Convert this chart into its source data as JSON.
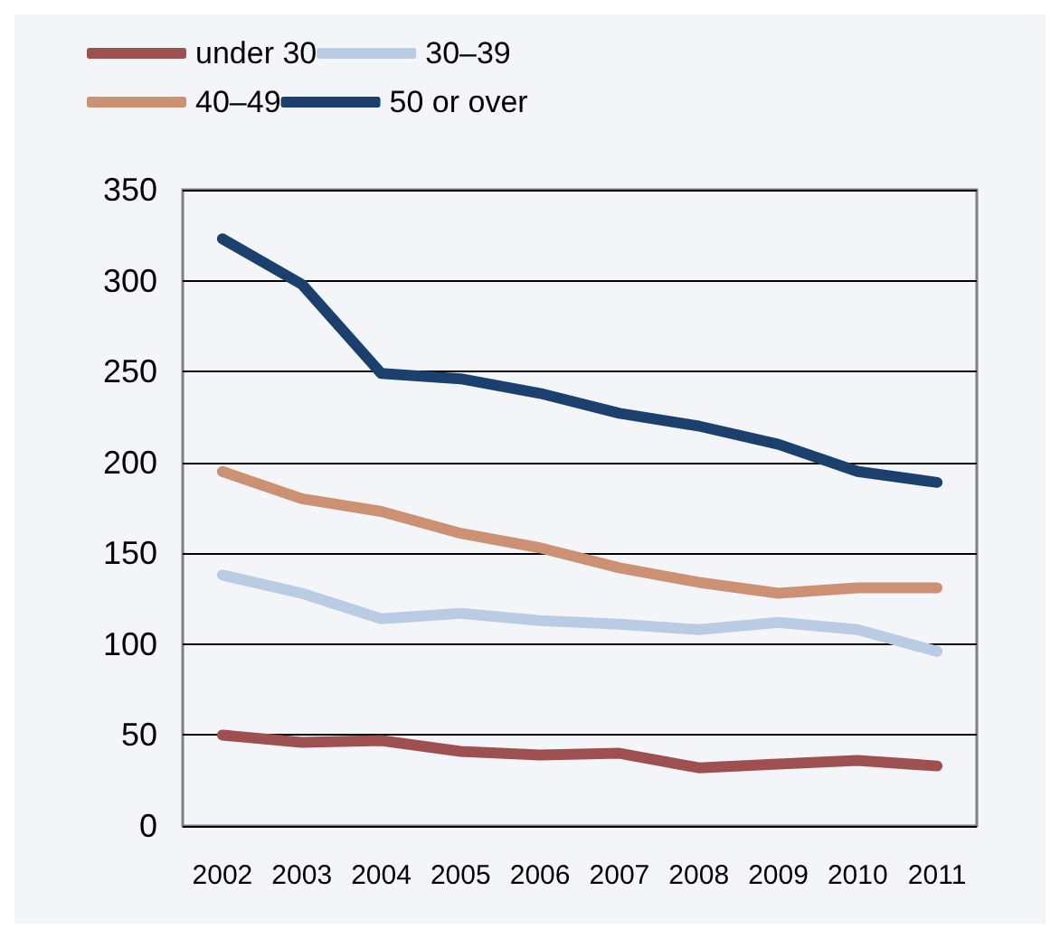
{
  "chart_data": {
    "type": "line",
    "categories": [
      "2002",
      "2003",
      "2004",
      "2005",
      "2006",
      "2007",
      "2008",
      "2009",
      "2010",
      "2011"
    ],
    "series": [
      {
        "name": "under 30",
        "color": "#9e4f50",
        "values": [
          50,
          46,
          47,
          41,
          39,
          40,
          32,
          34,
          36,
          33
        ]
      },
      {
        "name": "30–39",
        "color": "#b9cce4",
        "values": [
          138,
          128,
          114,
          117,
          113,
          111,
          108,
          112,
          108,
          96
        ]
      },
      {
        "name": "40–49",
        "color": "#cc9072",
        "values": [
          195,
          180,
          173,
          161,
          153,
          142,
          134,
          128,
          131,
          131
        ]
      },
      {
        "name": "50 or over",
        "color": "#1b406d",
        "values": [
          323,
          298,
          249,
          246,
          238,
          227,
          220,
          210,
          195,
          189
        ]
      }
    ],
    "ylim": [
      0,
      350
    ],
    "yticks": [
      0,
      50,
      100,
      150,
      200,
      250,
      300,
      350
    ],
    "grid": "y",
    "legend": "top",
    "marker": "none",
    "line_style": "solid"
  }
}
